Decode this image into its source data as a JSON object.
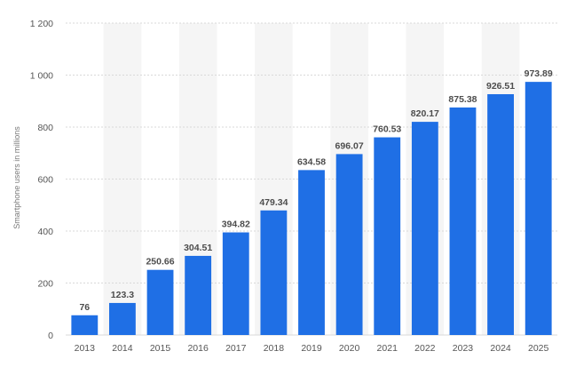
{
  "chart_data": {
    "type": "bar",
    "title": "",
    "xlabel": "",
    "ylabel": "Smartphone users in millions",
    "categories": [
      "2013",
      "2014",
      "2015",
      "2016",
      "2017",
      "2018",
      "2019",
      "2020",
      "2021",
      "2022",
      "2023",
      "2024",
      "2025"
    ],
    "values": [
      76,
      123.3,
      250.66,
      304.51,
      394.82,
      479.34,
      634.58,
      696.07,
      760.53,
      820.17,
      875.38,
      926.51,
      973.89
    ],
    "value_labels": [
      "76",
      "123.3",
      "250.66",
      "304.51",
      "394.82",
      "479.34",
      "634.58",
      "696.07",
      "760.53",
      "820.17",
      "875.38",
      "926.51",
      "973.89"
    ],
    "ylim": [
      0,
      1200
    ],
    "yticks": [
      0,
      200,
      400,
      600,
      800,
      1000,
      1200
    ],
    "ytick_labels": [
      "0",
      "200",
      "400",
      "600",
      "800",
      "1 000",
      "1 200"
    ],
    "grid": true,
    "legend": "none",
    "colors": {
      "bar": "#1f6fe5",
      "grid": "#d9d9d9",
      "band": "#f5f5f5"
    }
  }
}
